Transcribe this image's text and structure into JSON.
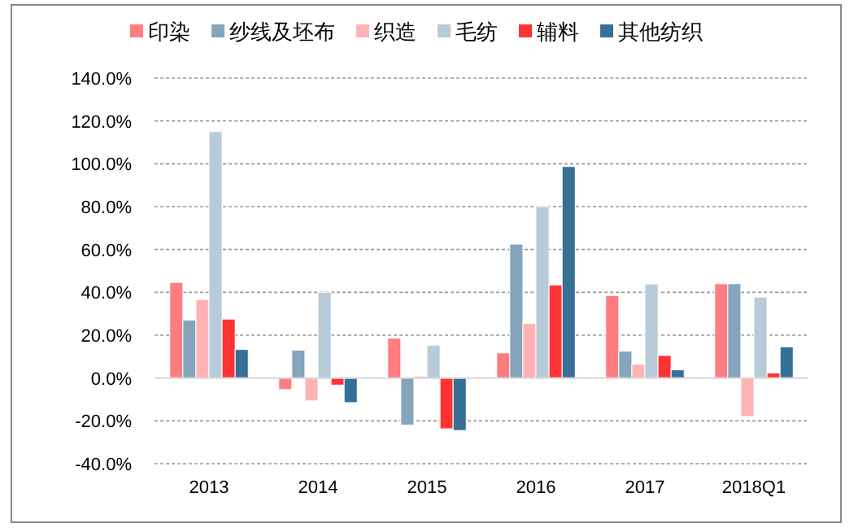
{
  "chart_data": {
    "type": "bar",
    "categories": [
      "2013",
      "2014",
      "2015",
      "2016",
      "2017",
      "2018Q1"
    ],
    "series": [
      {
        "name": "印染",
        "color": "#ff7c80",
        "values": [
          44.6,
          -5.4,
          18.6,
          11.7,
          38.5,
          44
        ]
      },
      {
        "name": "纱线及坯布",
        "color": "#84a5bc",
        "values": [
          27,
          13,
          -22,
          62.5,
          12.5,
          44
        ]
      },
      {
        "name": "织造",
        "color": "#ffb3b5",
        "values": [
          36.5,
          -10.7,
          0.8,
          25.5,
          6.4,
          -18
        ]
      },
      {
        "name": "毛纺",
        "color": "#b7cbd9",
        "values": [
          115,
          40,
          15.3,
          80,
          43.9,
          37.8
        ]
      },
      {
        "name": "辅料",
        "color": "#ff3333",
        "values": [
          27.5,
          -3.3,
          -23.7,
          43.4,
          10.5,
          2.3
        ]
      },
      {
        "name": "其他纺织",
        "color": "#376f96",
        "values": [
          13.3,
          -11.5,
          -24.5,
          98.7,
          3.8,
          14.5
        ]
      }
    ],
    "ylim": [
      -40,
      140
    ],
    "yticks": [
      {
        "value": -40,
        "label": "-40.0%"
      },
      {
        "value": -20,
        "label": "-20.0%"
      },
      {
        "value": 0,
        "label": "0.0%"
      },
      {
        "value": 20,
        "label": "20.0%"
      },
      {
        "value": 40,
        "label": "40.0%"
      },
      {
        "value": 60,
        "label": "60.0%"
      },
      {
        "value": 80,
        "label": "80.0%"
      },
      {
        "value": 100,
        "label": "100.0%"
      },
      {
        "value": 120,
        "label": "120.0%"
      },
      {
        "value": 140,
        "label": "140.0%"
      }
    ],
    "grid": "y",
    "legend": "top"
  }
}
